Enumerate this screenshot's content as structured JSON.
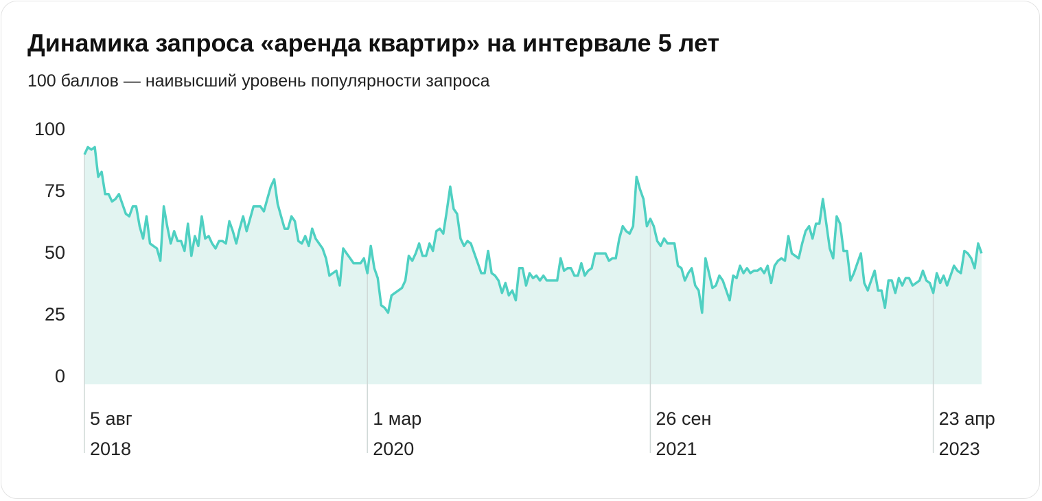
{
  "chart_data": {
    "type": "area",
    "title": "Динамика запроса «аренда квартир» на интервале 5 лет",
    "subtitle": "100 баллов — наивысший уровень популярности запроса",
    "color": "#4fd0c2",
    "fill": "#e2f4f1",
    "ylim": [
      0,
      100
    ],
    "yticks": [
      0,
      25,
      50,
      75,
      100
    ],
    "grid": false,
    "categories": [
      "5 авг\n2018",
      null,
      null,
      null,
      null,
      null,
      null,
      null,
      null,
      null,
      null,
      null,
      null,
      null,
      null,
      null,
      null,
      null,
      null,
      null,
      null,
      null,
      null,
      null,
      null,
      null,
      null,
      null,
      null,
      null,
      null,
      null,
      null,
      null,
      null,
      null,
      null,
      null,
      null,
      null,
      null,
      null,
      null,
      null,
      null,
      null,
      null,
      null,
      null,
      null,
      null,
      null,
      null,
      null,
      null,
      null,
      null,
      null,
      null,
      null,
      null,
      null,
      null,
      null,
      null,
      null,
      null,
      null,
      null,
      null,
      null,
      null,
      null,
      null,
      null,
      null,
      null,
      null,
      null,
      null,
      null,
      null,
      "1 мар\n2020",
      null,
      null,
      null,
      null,
      null,
      null,
      null,
      null,
      null,
      null,
      null,
      null,
      null,
      null,
      null,
      null,
      null,
      null,
      null,
      null,
      null,
      null,
      null,
      null,
      null,
      null,
      null,
      null,
      null,
      null,
      null,
      null,
      null,
      null,
      null,
      null,
      null,
      null,
      null,
      null,
      null,
      null,
      null,
      null,
      null,
      null,
      null,
      null,
      null,
      null,
      null,
      null,
      null,
      null,
      null,
      null,
      null,
      null,
      null,
      null,
      null,
      null,
      null,
      null,
      null,
      null,
      null,
      null,
      null,
      null,
      null,
      null,
      null,
      null,
      null,
      null,
      null,
      null,
      null,
      null,
      null,
      "26 сен\n2021",
      null,
      null,
      null,
      null,
      null,
      null,
      null,
      null,
      null,
      null,
      null,
      null,
      null,
      null,
      null,
      null,
      null,
      null,
      null,
      null,
      null,
      null,
      null,
      null,
      null,
      null,
      null,
      null,
      null,
      null,
      null,
      null,
      null,
      null,
      null,
      null,
      null,
      null,
      null,
      null,
      null,
      null,
      null,
      null,
      null,
      null,
      null,
      null,
      null,
      null,
      null,
      null,
      null,
      null,
      null,
      null,
      null,
      null,
      null,
      null,
      null,
      null,
      null,
      null,
      null,
      null,
      null,
      null,
      null,
      null,
      null,
      null,
      null,
      null,
      null,
      null,
      null,
      null,
      null,
      null,
      null,
      "23 апр\n2023",
      null,
      null,
      null,
      null,
      null,
      null,
      null,
      null,
      null,
      null,
      null,
      null,
      null,
      null
    ],
    "values": [
      93,
      96,
      95,
      96,
      84,
      86,
      77,
      77,
      74,
      75,
      77,
      73,
      69,
      68,
      72,
      72,
      64,
      59,
      68,
      57,
      56,
      55,
      50,
      72,
      64,
      57,
      62,
      58,
      58,
      54,
      65,
      52,
      60,
      56,
      68,
      59,
      60,
      57,
      55,
      58,
      58,
      57,
      66,
      62,
      57,
      63,
      68,
      62,
      67,
      72,
      72,
      72,
      70,
      75,
      80,
      83,
      73,
      68,
      63,
      63,
      68,
      66,
      58,
      57,
      60,
      56,
      63,
      59,
      57,
      55,
      51,
      44,
      45,
      46,
      40,
      55,
      53,
      51,
      49,
      49,
      49,
      51,
      45,
      56,
      47,
      43,
      32,
      31,
      29,
      36,
      37,
      38,
      39,
      42,
      52,
      50,
      53,
      57,
      52,
      52,
      57,
      54,
      62,
      63,
      61,
      70,
      80,
      71,
      69,
      59,
      56,
      58,
      57,
      53,
      49,
      45,
      45,
      54,
      45,
      44,
      42,
      37,
      41,
      36,
      38,
      34,
      47,
      47,
      40,
      45,
      43,
      44,
      42,
      44,
      42,
      42,
      42,
      42,
      51,
      46,
      47,
      47,
      44,
      44,
      49,
      44,
      46,
      47,
      53,
      53,
      53,
      53,
      50,
      51,
      51,
      59,
      64,
      62,
      61,
      64,
      84,
      79,
      75,
      64,
      67,
      64,
      58,
      56,
      59,
      57,
      57,
      57,
      48,
      47,
      42,
      45,
      47,
      40,
      38,
      29,
      51,
      45,
      39,
      40,
      44,
      42,
      38,
      34,
      44,
      43,
      48,
      45,
      47,
      45,
      46,
      46,
      47,
      45,
      48,
      41,
      48,
      50,
      51,
      50,
      60,
      53,
      52,
      51,
      57,
      62,
      64,
      59,
      65,
      65,
      75,
      65,
      55,
      51,
      68,
      65,
      54,
      54,
      42,
      45,
      49,
      53,
      41,
      38,
      42,
      46,
      38,
      38,
      31,
      42,
      42,
      37,
      43,
      40,
      43,
      43,
      40,
      41,
      42,
      46,
      42,
      41,
      37,
      45,
      41,
      44,
      40,
      44,
      48,
      46,
      45,
      54,
      53,
      51,
      47,
      57,
      53
    ]
  }
}
